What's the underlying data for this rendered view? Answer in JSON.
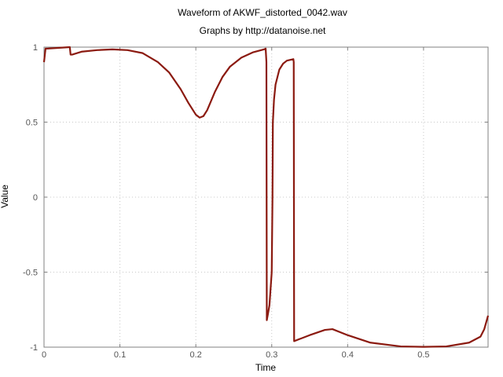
{
  "chart_data": {
    "type": "line",
    "title": "Waveform of AKWF_distorted_0042.wav",
    "subtitle": "Graphs by http://datanoise.net",
    "xlabel": "Time",
    "ylabel": "Value",
    "xlim": [
      0,
      0.585
    ],
    "ylim": [
      -1,
      1
    ],
    "grid": true,
    "line_color": "#8b1a10",
    "x_ticks": [
      {
        "value": 0,
        "label": "0"
      },
      {
        "value": 0.1,
        "label": "0.1"
      },
      {
        "value": 0.2,
        "label": "0.2"
      },
      {
        "value": 0.3,
        "label": "0.3"
      },
      {
        "value": 0.4,
        "label": "0.4"
      },
      {
        "value": 0.5,
        "label": "0.5"
      }
    ],
    "y_ticks": [
      {
        "value": 1,
        "label": "1"
      },
      {
        "value": 0.5,
        "label": "0.5"
      },
      {
        "value": 0,
        "label": "0"
      },
      {
        "value": -0.5,
        "label": "-0.5"
      },
      {
        "value": -1,
        "label": "-1"
      }
    ],
    "series": [
      {
        "x": [
          0,
          0.002,
          0.004,
          0.034,
          0.035,
          0.037,
          0.05,
          0.07,
          0.09,
          0.11,
          0.13,
          0.15,
          0.165,
          0.18,
          0.19,
          0.2,
          0.205,
          0.21,
          0.215,
          0.225,
          0.235,
          0.245,
          0.26,
          0.275,
          0.29,
          0.292,
          0.293,
          0.2935,
          0.295,
          0.297,
          0.3,
          0.301,
          0.3015,
          0.303,
          0.305,
          0.31,
          0.315,
          0.32,
          0.3285,
          0.329,
          0.3295,
          0.35,
          0.37,
          0.38,
          0.4,
          0.43,
          0.47,
          0.5,
          0.53,
          0.56,
          0.575,
          0.58,
          0.585
        ],
        "y": [
          0.9,
          0.99,
          0.99,
          1.0,
          0.95,
          0.95,
          0.97,
          0.98,
          0.985,
          0.98,
          0.96,
          0.9,
          0.83,
          0.72,
          0.63,
          0.55,
          0.53,
          0.54,
          0.58,
          0.7,
          0.8,
          0.87,
          0.93,
          0.965,
          0.985,
          0.99,
          0.9,
          -0.82,
          -0.78,
          -0.72,
          -0.5,
          0.0,
          0.5,
          0.65,
          0.75,
          0.85,
          0.89,
          0.91,
          0.92,
          0.9,
          -0.96,
          -0.92,
          -0.885,
          -0.88,
          -0.92,
          -0.97,
          -0.995,
          -0.998,
          -0.995,
          -0.97,
          -0.93,
          -0.88,
          -0.79
        ]
      }
    ]
  }
}
